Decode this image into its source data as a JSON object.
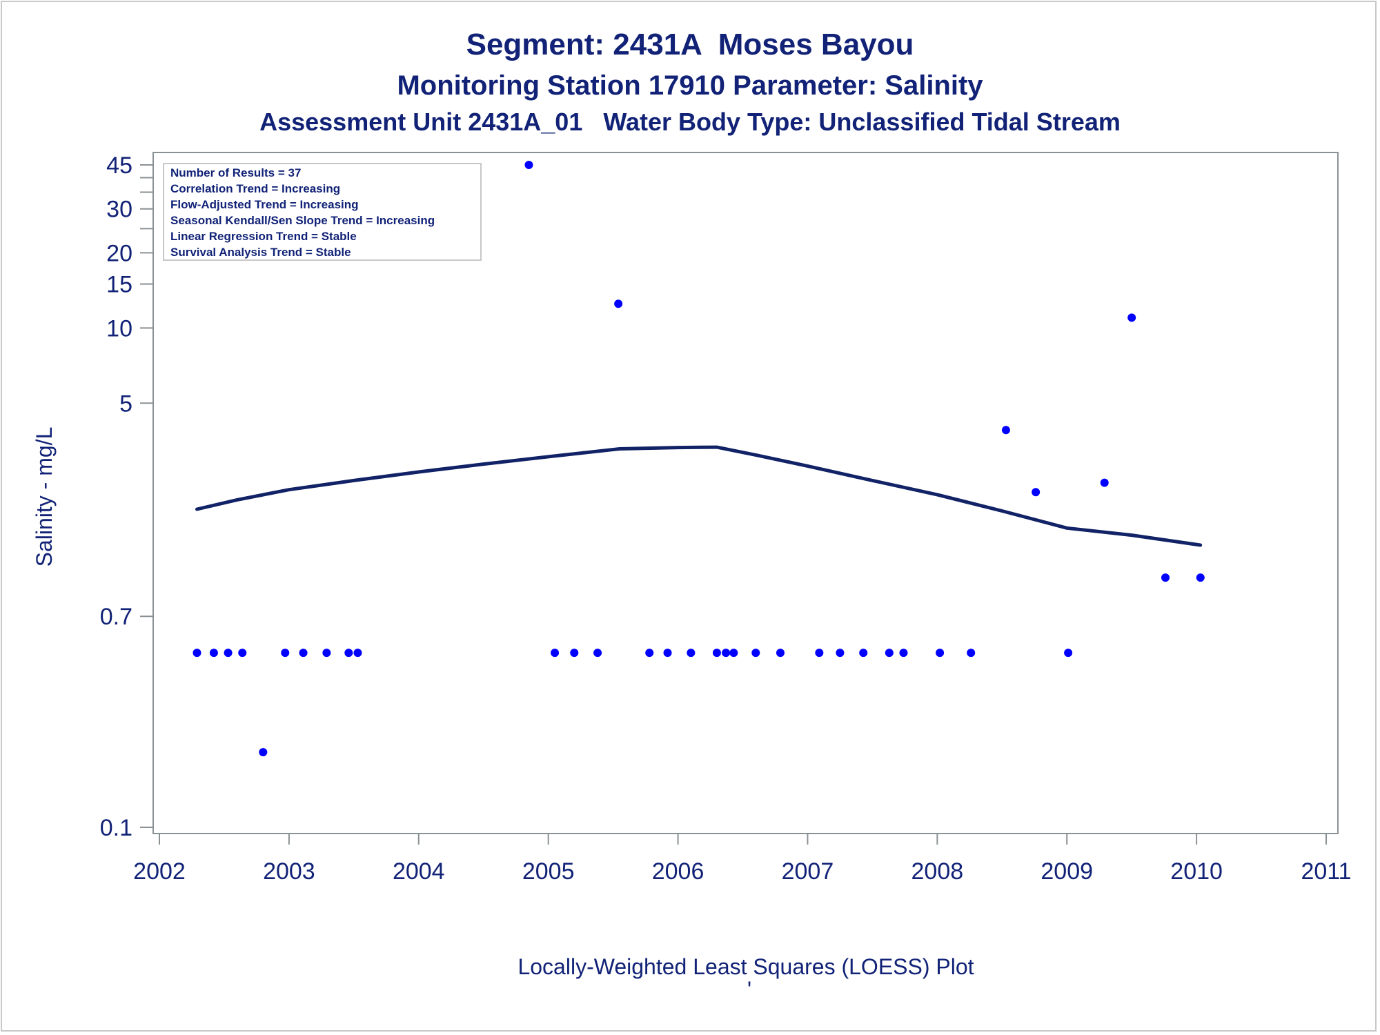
{
  "colors": {
    "text": "#112277",
    "points": "#0000ff",
    "line": "#112266",
    "axis": "#8a9194"
  },
  "chart_data": {
    "type": "scatter",
    "title": "Segment: 2431A  Moses Bayou",
    "subtitle": "Monitoring Station 17910 Parameter: Salinity",
    "subtitle2": "Assessment Unit 2431A_01   Water Body Type: Unclassified Tidal Stream",
    "xlabel": "",
    "ylabel": "Salinity - mg/L",
    "footer": "Locally-Weighted Least Squares (LOESS) Plot",
    "footer_mark": "'",
    "y_scale": "log",
    "xlim": [
      2002,
      2011
    ],
    "ylim": [
      0.1,
      45
    ],
    "x_ticks": [
      "2002",
      "2003",
      "2004",
      "2005",
      "2006",
      "2007",
      "2008",
      "2009",
      "2010",
      "2011"
    ],
    "y_ticks": [
      {
        "value": 45,
        "label": "45"
      },
      {
        "value": 40,
        "label": ""
      },
      {
        "value": 35,
        "label": ""
      },
      {
        "value": 30,
        "label": "30"
      },
      {
        "value": 25,
        "label": ""
      },
      {
        "value": 20,
        "label": "20"
      },
      {
        "value": 15,
        "label": "15"
      },
      {
        "value": 10,
        "label": "10"
      },
      {
        "value": 5,
        "label": "5"
      },
      {
        "value": 0.7,
        "label": "0.7"
      },
      {
        "value": 0.1,
        "label": "0.1"
      }
    ],
    "grid": false,
    "legend": "top-left",
    "info_box": [
      "Number of Results = 37",
      "Correlation Trend = Increasing",
      "Flow-Adjusted Trend = Increasing",
      "Seasonal Kendall/Sen Slope Trend = Increasing",
      "Linear Regression Trend = Stable",
      "Survival Analysis Trend = Stable"
    ],
    "series": [
      {
        "type": "scatter",
        "points": [
          [
            2002.29,
            0.5
          ],
          [
            2002.42,
            0.5
          ],
          [
            2002.53,
            0.5
          ],
          [
            2002.64,
            0.5
          ],
          [
            2002.8,
            0.2
          ],
          [
            2002.97,
            0.5
          ],
          [
            2003.11,
            0.5
          ],
          [
            2003.29,
            0.5
          ],
          [
            2003.46,
            0.5
          ],
          [
            2003.53,
            0.5
          ],
          [
            2004.85,
            45
          ],
          [
            2005.05,
            0.5
          ],
          [
            2005.2,
            0.5
          ],
          [
            2005.38,
            0.5
          ],
          [
            2005.54,
            12.5
          ],
          [
            2005.78,
            0.5
          ],
          [
            2005.92,
            0.5
          ],
          [
            2006.1,
            0.5
          ],
          [
            2006.3,
            0.5
          ],
          [
            2006.37,
            0.5
          ],
          [
            2006.43,
            0.5
          ],
          [
            2006.6,
            0.5
          ],
          [
            2006.79,
            0.5
          ],
          [
            2007.09,
            0.5
          ],
          [
            2007.25,
            0.5
          ],
          [
            2007.43,
            0.5
          ],
          [
            2007.63,
            0.5
          ],
          [
            2007.74,
            0.5
          ],
          [
            2008.02,
            0.5
          ],
          [
            2008.26,
            0.5
          ],
          [
            2008.53,
            3.9
          ],
          [
            2008.76,
            2.2
          ],
          [
            2009.01,
            0.5
          ],
          [
            2009.29,
            2.4
          ],
          [
            2009.5,
            11
          ],
          [
            2009.76,
            1.0
          ],
          [
            2010.03,
            1.0
          ]
        ]
      },
      {
        "type": "line",
        "points": [
          [
            2002.29,
            1.88
          ],
          [
            2002.6,
            2.05
          ],
          [
            2003.0,
            2.25
          ],
          [
            2003.5,
            2.45
          ],
          [
            2004.0,
            2.65
          ],
          [
            2004.5,
            2.85
          ],
          [
            2005.0,
            3.05
          ],
          [
            2005.55,
            3.28
          ],
          [
            2006.0,
            3.32
          ],
          [
            2006.3,
            3.33
          ],
          [
            2006.6,
            3.1
          ],
          [
            2007.0,
            2.8
          ],
          [
            2007.5,
            2.45
          ],
          [
            2008.0,
            2.15
          ],
          [
            2008.5,
            1.85
          ],
          [
            2009.0,
            1.58
          ],
          [
            2009.5,
            1.48
          ],
          [
            2010.03,
            1.35
          ]
        ]
      }
    ]
  }
}
